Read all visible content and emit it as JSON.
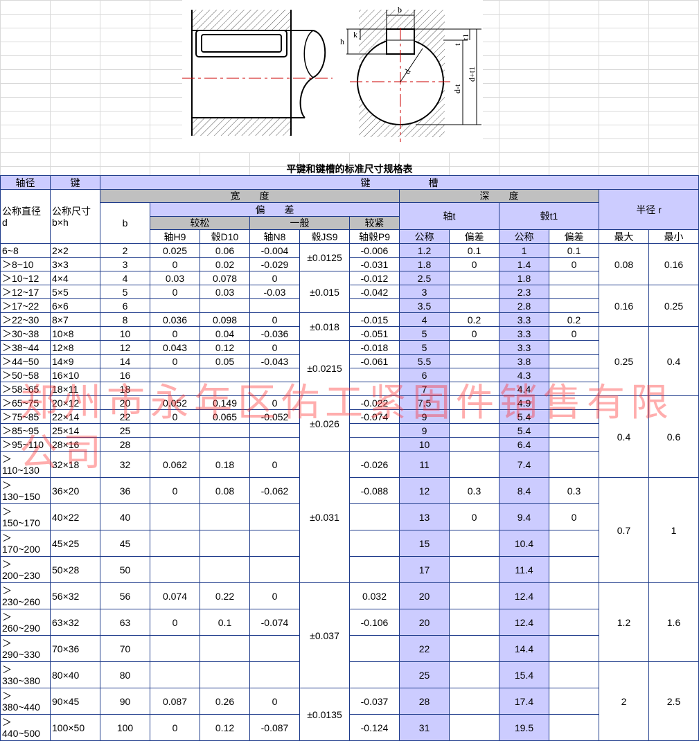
{
  "diagram": {
    "labels": {
      "b": "b",
      "h": "h",
      "k": "k",
      "t": "t",
      "t1": "t1",
      "d": "d",
      "d_minus_t": "d-t",
      "d_plus_t1": "d+t1"
    }
  },
  "title": "平键和键槽的标准尺寸规格表",
  "header": {
    "shaft": "轴径",
    "key": "键",
    "keyway": "键　　　　　　槽",
    "d_label": [
      "公称直径",
      "d"
    ],
    "size_label": [
      "公称尺寸",
      "b×h"
    ],
    "b": "b",
    "width": "宽　　度",
    "depth": "深　　度",
    "deviation": "偏　　差",
    "shaft_t": "轴t",
    "hub_t1": "毂t1",
    "radius": "半径 r",
    "loose": "较松",
    "normal": "一般",
    "tight": "较紧",
    "columns": [
      "轴H9",
      "毂D10",
      "轴N8",
      "毂JS9",
      "轴毂P9",
      "公称",
      "偏差",
      "公称",
      "偏差",
      "最大",
      "最小"
    ]
  },
  "table": {
    "rows": [
      [
        "6~8",
        "2×2",
        "2",
        "0.025",
        "0.06",
        "-0.004",
        "±0.0125",
        "-0.006",
        "1.2",
        "0.1",
        "1",
        "0.1",
        "0.08",
        "0.16"
      ],
      [
        "＞8~10",
        "3×3",
        "3",
        "0",
        "0.02",
        "-0.029",
        null,
        "-0.031",
        "1.8",
        "0",
        "1.4",
        "0",
        null,
        null
      ],
      [
        "＞10~12",
        "4×4",
        "4",
        "0.03",
        "0.078",
        "0",
        "±0.015",
        "-0.012",
        "2.5",
        null,
        "1.8",
        null,
        null,
        null
      ],
      [
        "＞12~17",
        "5×5",
        "5",
        "0",
        "0.03",
        "-0.03",
        null,
        "-0.042",
        "3",
        null,
        "2.3",
        null,
        "0.16",
        "0.25"
      ],
      [
        "＞17~22",
        "6×6",
        "6",
        null,
        null,
        null,
        null,
        null,
        "3.5",
        null,
        "2.8",
        null,
        null,
        null
      ],
      [
        "＞22~30",
        "8×7",
        "8",
        "0.036",
        "0.098",
        "0",
        "±0.018",
        "-0.015",
        "4",
        "0.2",
        "3.3",
        "0.2",
        null,
        null
      ],
      [
        "＞30~38",
        "10×8",
        "10",
        "0",
        "0.04",
        "-0.036",
        null,
        "-0.051",
        "5",
        "0",
        "3.3",
        "0",
        "0.25",
        "0.4"
      ],
      [
        "＞38~44",
        "12×8",
        "12",
        "0.043",
        "0.12",
        "0",
        "±0.0215",
        "-0.018",
        "5",
        null,
        "3.3",
        null,
        null,
        null
      ],
      [
        "＞44~50",
        "14×9",
        "14",
        "0",
        "0.05",
        "-0.043",
        null,
        "-0.061",
        "5.5",
        null,
        "3.8",
        null,
        null,
        null
      ],
      [
        "＞50~58",
        "16×10",
        "16",
        null,
        null,
        null,
        null,
        null,
        "6",
        null,
        "4.3",
        null,
        null,
        null
      ],
      [
        "＞58~65",
        "18×11",
        "18",
        null,
        null,
        null,
        null,
        null,
        "7",
        null,
        "4.4",
        null,
        null,
        null
      ],
      [
        "＞65~75",
        "20×12",
        "20",
        "0.052",
        "0.149",
        "0",
        "±0.026",
        "-0.022",
        "7.5",
        null,
        "4.9",
        null,
        "0.4",
        "0.6"
      ],
      [
        "＞75~85",
        "22×14",
        "22",
        "0",
        "0.065",
        "-0.052",
        null,
        "-0.074",
        "9",
        null,
        "5.4",
        null,
        null,
        null
      ],
      [
        "＞85~95",
        "25×14",
        "25",
        null,
        null,
        null,
        null,
        null,
        "9",
        null,
        "5.4",
        null,
        null,
        null
      ],
      [
        "＞95~110",
        "28×16",
        "28",
        null,
        null,
        null,
        null,
        null,
        "10",
        null,
        "6.4",
        null,
        null,
        null
      ],
      [
        "＞110~130",
        "32×18",
        "32",
        "0.062",
        "0.18",
        "0",
        "±0.031",
        "-0.026",
        "11",
        null,
        "7.4",
        null,
        null,
        null
      ],
      [
        "＞130~150",
        "36×20",
        "36",
        "0",
        "0.08",
        "-0.062",
        null,
        "-0.088",
        "12",
        "0.3",
        "8.4",
        "0.3",
        "0.7",
        "1"
      ],
      [
        "＞150~170",
        "40×22",
        "40",
        null,
        null,
        null,
        null,
        null,
        "13",
        "0",
        "9.4",
        "0",
        null,
        null
      ],
      [
        "＞170~200",
        "45×25",
        "45",
        null,
        null,
        null,
        null,
        null,
        "15",
        null,
        "10.4",
        null,
        null,
        null
      ],
      [
        "＞200~230",
        "50×28",
        "50",
        null,
        null,
        null,
        null,
        null,
        "17",
        null,
        "11.4",
        null,
        null,
        null
      ],
      [
        "＞230~260",
        "56×32",
        "56",
        "0.074",
        "0.22",
        "0",
        "±0.037",
        "0.032",
        "20",
        null,
        "12.4",
        null,
        "1.2",
        "1.6"
      ],
      [
        "＞260~290",
        "63×32",
        "63",
        "0",
        "0.1",
        "-0.074",
        null,
        "-0.106",
        "20",
        null,
        "12.4",
        null,
        null,
        null
      ],
      [
        "＞290~330",
        "70×36",
        "70",
        null,
        null,
        null,
        null,
        null,
        "22",
        null,
        "14.4",
        null,
        null,
        null
      ],
      [
        "＞330~380",
        "80×40",
        "80",
        null,
        null,
        null,
        null,
        null,
        "25",
        null,
        "15.4",
        null,
        "2",
        "2.5"
      ],
      [
        "＞380~440",
        "90×45",
        "90",
        "0.087",
        "0.26",
        "0",
        "±0.0135",
        "-0.037",
        "28",
        null,
        "17.4",
        null,
        null,
        null
      ],
      [
        "＞440~500",
        "100×50",
        "100",
        "0",
        "0.12",
        "-0.087",
        null,
        "-0.124",
        "31",
        null,
        "19.5",
        null,
        null,
        null
      ]
    ]
  },
  "watermark": "郑州市永年区佑工紧固件销售有限公司"
}
